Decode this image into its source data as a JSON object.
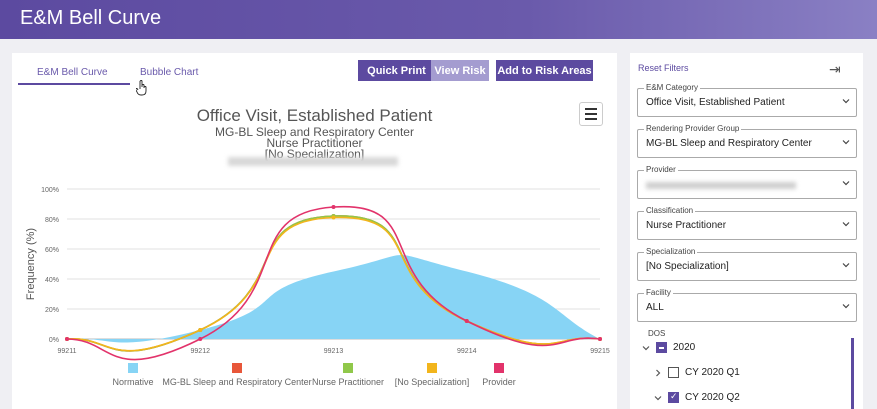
{
  "app": {
    "title": "E&M Bell Curve"
  },
  "tabs": [
    {
      "label": "E&M Bell Curve",
      "active": true
    },
    {
      "label": "Bubble Chart",
      "active": false
    }
  ],
  "actions": {
    "quick_print": "Quick Print",
    "view_risk": "View Risk",
    "add_to_risk": "Add to Risk Areas"
  },
  "chart_data": {
    "type": "line",
    "title": "Office Visit, Established Patient",
    "subtitle": [
      "MG-BL Sleep and Respiratory Center",
      "Nurse Practitioner",
      "[No Specialization]"
    ],
    "xlabel": "",
    "ylabel": "Frequency (%)",
    "categories": [
      "99211",
      "99212",
      "99213",
      "99214",
      "99215"
    ],
    "yticks": [
      "0%",
      "20%",
      "40%",
      "60%",
      "80%",
      "100%"
    ],
    "ylim": [
      0,
      100
    ],
    "grid": true,
    "legend_position": "bottom",
    "series": [
      {
        "name": "Normative",
        "kind": "area",
        "color": "#87d4f5",
        "values": [
          0,
          6,
          45,
          45,
          0
        ]
      },
      {
        "name": "MG-BL Sleep and Respiratory Center",
        "kind": "line",
        "color": "#e8573a",
        "values": [
          0,
          6,
          82,
          12,
          0
        ]
      },
      {
        "name": "Nurse Practitioner",
        "kind": "line",
        "color": "#90c84a",
        "values": [
          0,
          6,
          82,
          12,
          0
        ]
      },
      {
        "name": "[No Specialization]",
        "kind": "line",
        "color": "#f2b51c",
        "values": [
          0,
          6,
          81,
          12,
          0
        ]
      },
      {
        "name": "Provider",
        "kind": "line",
        "color": "#e2336b",
        "values": [
          0,
          0,
          88,
          12,
          0
        ]
      }
    ]
  },
  "filters": {
    "reset_label": "Reset Filters",
    "collapse_icon": "⇥",
    "em_category": {
      "label": "E&M Category",
      "value": "Office Visit, Established Patient"
    },
    "rendering_group": {
      "label": "Rendering Provider Group",
      "value": "MG-BL Sleep and Respiratory Center"
    },
    "provider": {
      "label": "Provider"
    },
    "classification": {
      "label": "Classification",
      "value": "Nurse Practitioner"
    },
    "specialization": {
      "label": "Specialization",
      "value": "[No Specialization]"
    },
    "facility": {
      "label": "Facility",
      "value": "ALL"
    },
    "dos": {
      "label": "DOS",
      "year": "2020",
      "items": [
        {
          "label": "CY 2020 Q1",
          "checked": false,
          "expanded": false
        },
        {
          "label": "CY 2020 Q2",
          "checked": true,
          "expanded": true
        }
      ]
    }
  }
}
